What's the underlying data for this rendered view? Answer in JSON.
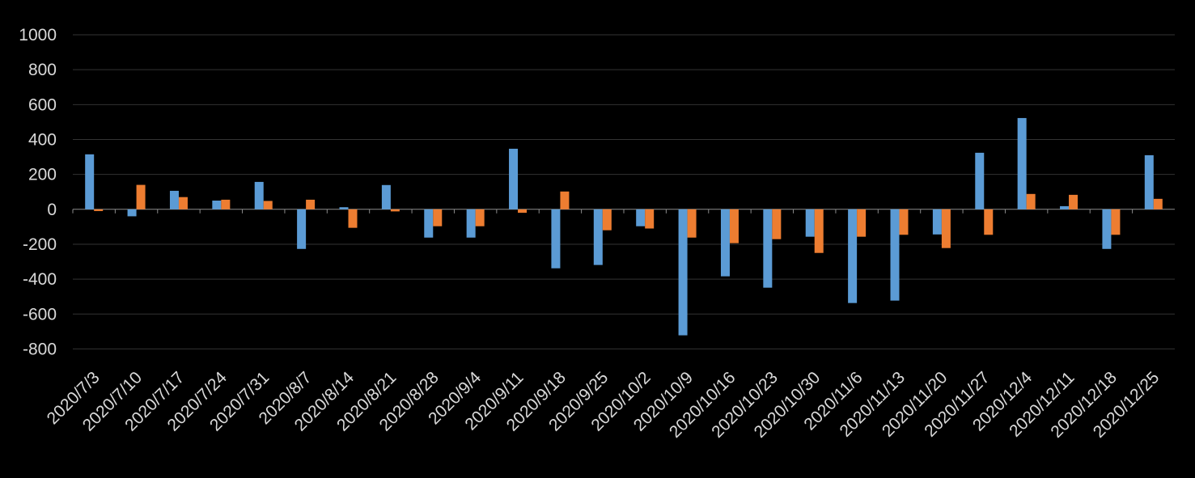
{
  "chart_data": {
    "type": "bar",
    "categories": [
      "2020/7/3",
      "2020/7/10",
      "2020/7/17",
      "2020/7/24",
      "2020/7/31",
      "2020/8/7",
      "2020/8/14",
      "2020/8/21",
      "2020/8/28",
      "2020/9/4",
      "2020/9/11",
      "2020/9/18",
      "2020/9/25",
      "2020/10/2",
      "2020/10/9",
      "2020/10/16",
      "2020/10/23",
      "2020/10/30",
      "2020/11/6",
      "2020/11/13",
      "2020/11/20",
      "2020/11/27",
      "2020/12/4",
      "2020/12/11",
      "2020/12/18",
      "2020/12/25"
    ],
    "series": [
      {
        "color": "#5b9bd5",
        "values": [
          315,
          -40,
          106,
          50,
          157,
          -227,
          12,
          139,
          -162,
          -162,
          347,
          -338,
          -319,
          -97,
          -722,
          -384,
          -449,
          -157,
          -537,
          -523,
          -144,
          324,
          523,
          18,
          -227,
          310
        ]
      },
      {
        "color": "#ed7d31",
        "values": [
          -10,
          140,
          70,
          55,
          48,
          55,
          -106,
          -12,
          -97,
          -97,
          -20,
          102,
          -120,
          -110,
          -162,
          -194,
          -171,
          -250,
          -157,
          -146,
          -222,
          -146,
          88,
          83,
          -146,
          60
        ]
      }
    ],
    "ylim": [
      -900,
      1000
    ],
    "yticks": [
      -800,
      -600,
      -400,
      -200,
      0,
      200,
      400,
      600,
      800,
      1000
    ],
    "grid": true
  }
}
